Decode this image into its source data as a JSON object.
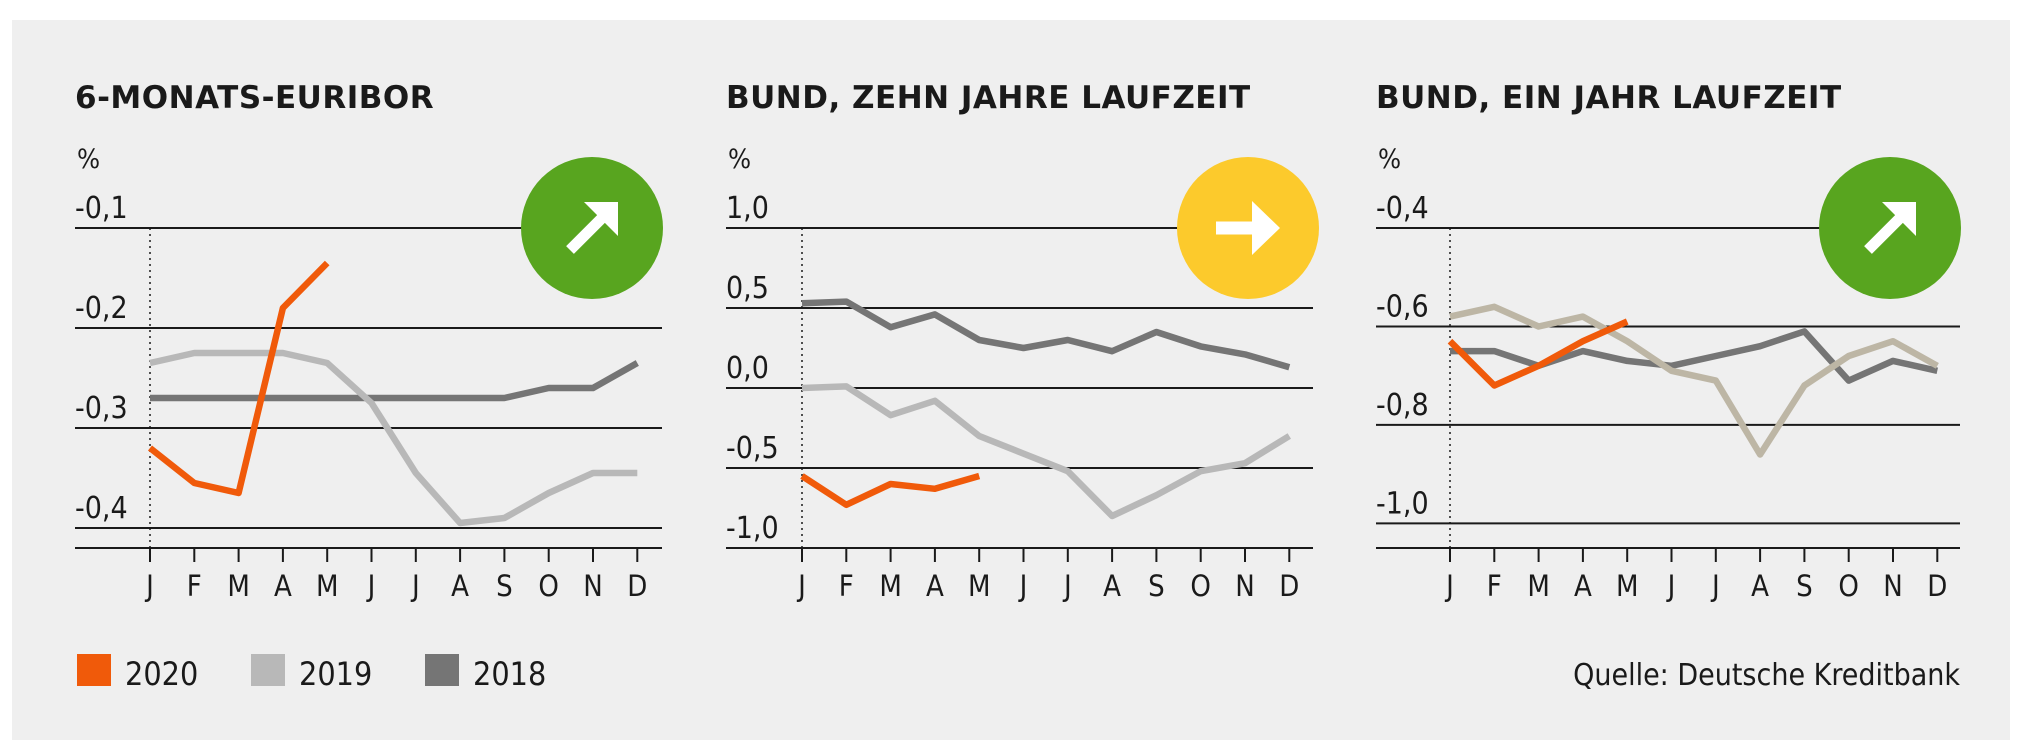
{
  "chart_data": [
    {
      "type": "line",
      "title": "6-MONATS-EURIBOR",
      "unit": "%",
      "yticks": [
        -0.1,
        -0.2,
        -0.3,
        -0.4
      ],
      "ytick_labels": [
        "-0,1",
        "-0,2",
        "-0,3",
        "-0,4"
      ],
      "ylim": [
        -0.42,
        -0.1
      ],
      "categories": [
        "J",
        "F",
        "M",
        "A",
        "M",
        "J",
        "J",
        "A",
        "S",
        "O",
        "N",
        "D"
      ],
      "trend": {
        "direction": "up",
        "color": "#58a51f",
        "icon": "arrow-up-right-icon"
      },
      "series": [
        {
          "name": "2018",
          "color": "#757575",
          "values": [
            -0.27,
            -0.27,
            -0.27,
            -0.27,
            -0.27,
            -0.27,
            -0.27,
            -0.27,
            -0.27,
            -0.26,
            -0.26,
            -0.235
          ]
        },
        {
          "name": "2019",
          "color": "#b8b8b8",
          "values": [
            -0.235,
            -0.225,
            -0.225,
            -0.225,
            -0.235,
            -0.275,
            -0.345,
            -0.395,
            -0.39,
            -0.365,
            -0.345,
            -0.345
          ]
        },
        {
          "name": "2020",
          "color": "#f05a0a",
          "values": [
            -0.32,
            -0.355,
            -0.365,
            -0.18,
            -0.135,
            null,
            null,
            null,
            null,
            null,
            null,
            null
          ]
        }
      ]
    },
    {
      "type": "line",
      "title": "BUND, ZEHN JAHRE LAUFZEIT",
      "unit": "%",
      "yticks": [
        1.0,
        0.5,
        0.0,
        -0.5,
        -1.0
      ],
      "ytick_labels": [
        "1,0",
        "0,5",
        "0,0",
        "-0,5",
        "-1,0"
      ],
      "ylim": [
        -1.0,
        1.0
      ],
      "categories": [
        "J",
        "F",
        "M",
        "A",
        "M",
        "J",
        "J",
        "A",
        "S",
        "O",
        "N",
        "D"
      ],
      "trend": {
        "direction": "right",
        "color": "#fcca2c",
        "icon": "arrow-right-icon"
      },
      "series": [
        {
          "name": "2018",
          "color": "#757575",
          "values": [
            0.53,
            0.54,
            0.38,
            0.46,
            0.3,
            0.25,
            0.3,
            0.23,
            0.35,
            0.26,
            0.21,
            0.13
          ]
        },
        {
          "name": "2019",
          "color": "#b8b8b8",
          "values": [
            0.0,
            0.01,
            -0.17,
            -0.08,
            -0.3,
            -0.41,
            -0.52,
            -0.8,
            -0.67,
            -0.52,
            -0.47,
            -0.3
          ]
        },
        {
          "name": "2020",
          "color": "#f05a0a",
          "values": [
            -0.55,
            -0.73,
            -0.6,
            -0.63,
            -0.55,
            null,
            null,
            null,
            null,
            null,
            null,
            null
          ]
        }
      ]
    },
    {
      "type": "line",
      "title": "BUND, EIN JAHR LAUFZEIT",
      "unit": "%",
      "yticks": [
        -0.4,
        -0.6,
        -0.8,
        -1.0
      ],
      "ytick_labels": [
        "-0,4",
        "-0,6",
        "-0,8",
        "-1,0"
      ],
      "ylim": [
        -1.05,
        -0.4
      ],
      "categories": [
        "J",
        "F",
        "M",
        "A",
        "M",
        "J",
        "J",
        "A",
        "S",
        "O",
        "N",
        "D"
      ],
      "trend": {
        "direction": "up",
        "color": "#58a51f",
        "icon": "arrow-up-right-icon"
      },
      "series": [
        {
          "name": "2018",
          "color": "#757575",
          "values": [
            -0.65,
            -0.65,
            -0.68,
            -0.65,
            -0.67,
            -0.68,
            -0.66,
            -0.64,
            -0.61,
            -0.71,
            -0.67,
            -0.69
          ]
        },
        {
          "name": "2019",
          "color": "#bdb6a5",
          "values": [
            -0.58,
            -0.56,
            -0.6,
            -0.58,
            -0.63,
            -0.69,
            -0.71,
            -0.86,
            -0.72,
            -0.66,
            -0.63,
            -0.68
          ]
        },
        {
          "name": "2020",
          "color": "#f05a0a",
          "values": [
            -0.63,
            -0.72,
            -0.68,
            -0.63,
            -0.59,
            null,
            null,
            null,
            null,
            null,
            null,
            null
          ]
        }
      ]
    }
  ],
  "legend": [
    {
      "label": "2020",
      "color": "#f05a0a"
    },
    {
      "label": "2019",
      "color": "#b8b8b8"
    },
    {
      "label": "2018",
      "color": "#757575"
    }
  ],
  "source": "Quelle: Deutsche Kreditbank"
}
